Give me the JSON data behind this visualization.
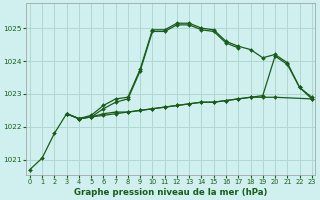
{
  "title": "Graphe pression niveau de la mer (hPa)",
  "background_color": "#cff0ee",
  "grid_color": "#b0d8d0",
  "line_color": "#1a5c1a",
  "xlim": [
    -0.3,
    23.3
  ],
  "ylim": [
    1020.55,
    1025.75
  ],
  "yticks": [
    1021,
    1022,
    1023,
    1024,
    1025
  ],
  "xticks": [
    0,
    1,
    2,
    3,
    4,
    5,
    6,
    7,
    8,
    9,
    10,
    11,
    12,
    13,
    14,
    15,
    16,
    17,
    18,
    19,
    20,
    21,
    22,
    23
  ],
  "lines": [
    [
      1020.7,
      1021.05,
      1021.8,
      1022.4,
      1022.25,
      1022.35,
      1022.65,
      1022.85,
      1022.9,
      1023.75,
      1024.95,
      1024.95,
      1025.15,
      1025.15,
      1025.0,
      1024.95,
      1024.6,
      1024.45,
      1024.35,
      1024.1,
      1024.2,
      1023.95,
      1023.2,
      1022.9
    ],
    [
      null,
      null,
      null,
      1022.4,
      1022.25,
      1022.3,
      1022.4,
      1022.45,
      1022.45,
      1022.5,
      1022.55,
      1022.6,
      1022.65,
      1022.7,
      1022.75,
      1022.75,
      1022.8,
      1022.85,
      1022.9,
      1022.9,
      1022.9,
      null,
      null,
      1022.85
    ],
    [
      null,
      null,
      null,
      1022.4,
      1022.25,
      1022.3,
      1022.35,
      1022.4,
      1022.45,
      1022.5,
      1022.55,
      1022.6,
      1022.65,
      1022.7,
      1022.75,
      1022.75,
      1022.8,
      1022.85,
      1022.9,
      1022.95,
      1024.15,
      1023.9,
      1023.2,
      1022.85
    ],
    [
      null,
      null,
      null,
      1022.4,
      1022.25,
      1022.3,
      1022.55,
      1022.75,
      1022.85,
      1023.7,
      1024.9,
      1024.9,
      1025.1,
      1025.1,
      1024.95,
      1024.9,
      1024.55,
      1024.4,
      null,
      null,
      null,
      null,
      null,
      null
    ]
  ]
}
